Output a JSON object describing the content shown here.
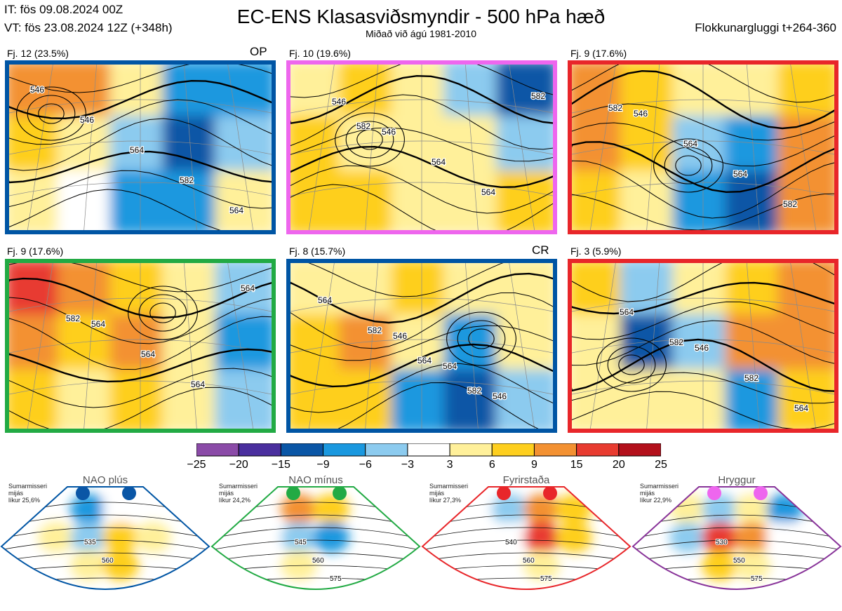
{
  "header": {
    "it": "IT: fös 09.08.2024 00Z",
    "vt": "VT: fös 23.08.2024 12Z  (+348h)",
    "title": "EC-ENS Klasasviðsmyndir - 500 hPa hæð",
    "subtitle": "Miðað við ágú 1981-2010",
    "window": "Flokkunargluggi t+264-360"
  },
  "colors": {
    "blue_border": "#0055a4",
    "pink_border": "#ee66ee",
    "red_border": "#e8262a",
    "green_border": "#22aa44",
    "purple_border": "#883399"
  },
  "panels": [
    {
      "label": "Fj. 12 (23.5%)",
      "tag": "OP",
      "border": "#0055a4",
      "contours": [
        "546",
        "546",
        "564",
        "582",
        "564"
      ]
    },
    {
      "label": "Fj. 10 (19.6%)",
      "tag": "",
      "border": "#ee66ee",
      "contours": [
        "546",
        "546",
        "564",
        "564",
        "582",
        "582"
      ]
    },
    {
      "label": "Fj. 9 (17.6%)",
      "tag": "",
      "border": "#e8262a",
      "contours": [
        "546",
        "564",
        "564",
        "582",
        "582"
      ]
    },
    {
      "label": "Fj. 9 (17.6%)",
      "tag": "",
      "border": "#22aa44",
      "contours": [
        "564",
        "564",
        "564",
        "564",
        "582"
      ]
    },
    {
      "label": "Fj. 8 (15.7%)",
      "tag": "CR",
      "border": "#0055a4",
      "contours": [
        "546",
        "564",
        "546",
        "564",
        "582",
        "564",
        "582"
      ]
    },
    {
      "label": "Fj. 3 (5.9%)",
      "tag": "",
      "border": "#e8262a",
      "contours": [
        "546",
        "582",
        "564",
        "564",
        "582"
      ]
    }
  ],
  "colorbar": {
    "ticks": [
      "−25",
      "−20",
      "−15",
      "−9",
      "−6",
      "−3",
      "3",
      "6",
      "9",
      "15",
      "20",
      "25"
    ],
    "colors": [
      "#8b4ba8",
      "#4a2f9e",
      "#0a56a6",
      "#1a98df",
      "#8ccbef",
      "#ffffff",
      "#fff09a",
      "#fecf1e",
      "#f39132",
      "#e83b30",
      "#b3101b"
    ]
  },
  "regimes": [
    {
      "name": "NAO plús",
      "desc": "Sumarmisseri\nmijás\nlíkur 25,6%",
      "border": "#0055a4",
      "dot": "#0a56a6",
      "contours": [
        "535",
        "560"
      ]
    },
    {
      "name": "NAO mínus",
      "desc": "Sumarmisseri\nmijás\nlíkur 24,2%",
      "border": "#22aa44",
      "dot": "#22aa44",
      "contours": [
        "545",
        "560",
        "575"
      ]
    },
    {
      "name": "Fyrirstaða",
      "desc": "Sumarmisseri\nmijás\nlíkur 27,3%",
      "border": "#e8262a",
      "dot": "#e8262a",
      "contours": [
        "540",
        "560",
        "575"
      ]
    },
    {
      "name": "Hryggur",
      "desc": "Sumarmisseri\nmijás\nlíkur 22,9%",
      "border": "#883399",
      "dot": "#ee66ee",
      "contours": [
        "530",
        "550",
        "575"
      ]
    }
  ],
  "chart_data": [
    {
      "type": "heatmap",
      "title": "Fj. 12 (23.5%)",
      "values": [
        [
          9,
          9,
          3,
          -9,
          -9
        ],
        [
          6,
          3,
          -6,
          -15,
          -6
        ],
        [
          3,
          -3,
          -9,
          -9,
          3
        ]
      ],
      "contour_labels": [
        "546",
        "546",
        "564",
        "582",
        "564"
      ]
    },
    {
      "type": "heatmap",
      "title": "Fj. 10 (19.6%)",
      "values": [
        [
          3,
          6,
          3,
          -6,
          -15
        ],
        [
          6,
          3,
          3,
          3,
          -6
        ],
        [
          6,
          6,
          3,
          3,
          6
        ]
      ],
      "contour_labels": [
        "546",
        "546",
        "564",
        "564",
        "582",
        "582"
      ]
    },
    {
      "type": "heatmap",
      "title": "Fj. 9 (17.6%)",
      "values": [
        [
          9,
          6,
          3,
          3,
          6
        ],
        [
          9,
          6,
          -6,
          -9,
          9
        ],
        [
          6,
          3,
          -9,
          -15,
          9
        ]
      ],
      "contour_labels": [
        "546",
        "564",
        "564",
        "582",
        "582"
      ]
    },
    {
      "type": "heatmap",
      "title": "Fj. 9 (17.6%)",
      "values": [
        [
          15,
          9,
          6,
          3,
          -6
        ],
        [
          9,
          6,
          9,
          3,
          -9
        ],
        [
          6,
          3,
          6,
          3,
          -6
        ]
      ],
      "contour_labels": [
        "564",
        "564",
        "564",
        "564",
        "582"
      ]
    },
    {
      "type": "heatmap",
      "title": "Fj. 8 (15.7%)",
      "values": [
        [
          3,
          3,
          6,
          3,
          3
        ],
        [
          6,
          9,
          3,
          -9,
          3
        ],
        [
          6,
          6,
          -9,
          -15,
          -6
        ]
      ],
      "contour_labels": [
        "546",
        "564",
        "546",
        "564",
        "582",
        "564",
        "582"
      ]
    },
    {
      "type": "heatmap",
      "title": "Fj. 3 (5.9%)",
      "values": [
        [
          6,
          -6,
          3,
          6,
          9
        ],
        [
          3,
          -15,
          -6,
          9,
          9
        ],
        [
          3,
          3,
          3,
          -9,
          6
        ]
      ],
      "contour_labels": [
        "546",
        "582",
        "564",
        "564",
        "582"
      ]
    }
  ]
}
